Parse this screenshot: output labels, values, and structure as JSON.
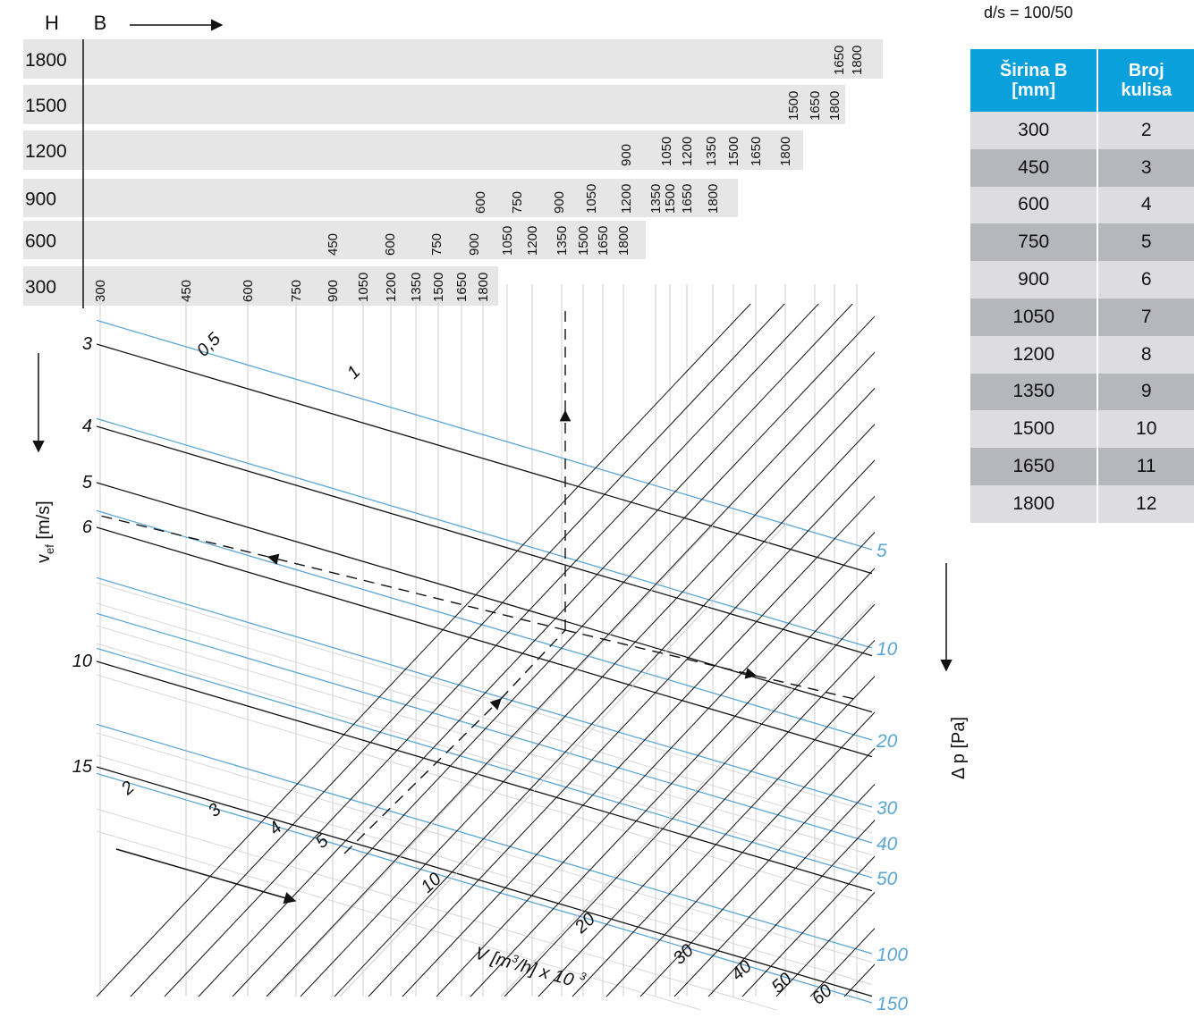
{
  "chart_data": {
    "type": "nomogram",
    "title": "",
    "top_axes": {
      "h_label": "H",
      "b_label": "B"
    },
    "height_rows": [
      {
        "h": "1800",
        "widths": [
          "1650",
          "1800"
        ]
      },
      {
        "h": "1500",
        "widths": [
          "1500",
          "1650",
          "1800"
        ]
      },
      {
        "h": "1200",
        "widths": [
          "900",
          "1050",
          "1200",
          "1350",
          "1500",
          "1650",
          "1800"
        ]
      },
      {
        "h": "900",
        "widths": [
          "600",
          "750",
          "900",
          "1050",
          "1200",
          "1350",
          "1500",
          "1650",
          "1800"
        ]
      },
      {
        "h": "600",
        "widths": [
          "450",
          "600",
          "750",
          "900",
          "1050",
          "1200",
          "1350",
          "1500",
          "1650",
          "1800"
        ]
      },
      {
        "h": "300",
        "widths": [
          "300",
          "450",
          "600",
          "750",
          "900",
          "1050",
          "1200",
          "1350",
          "1500",
          "1650",
          "1800"
        ]
      }
    ],
    "velocity_axis": {
      "label": "v",
      "subscript": "ef",
      "unit": " [m/s]",
      "ticks": [
        "3",
        "4",
        "5",
        "6",
        "10",
        "15"
      ]
    },
    "pressure_axis": {
      "label": "Δ p [Pa]",
      "ticks": [
        "5",
        "10",
        "20",
        "30",
        "40",
        "50",
        "100",
        "150"
      ]
    },
    "flow_axis": {
      "label_main": "V [m",
      "label_sup": "3",
      "label_mid": "/h] x 10",
      "label_sup2": "3",
      "ticks": [
        "0,5",
        "1",
        "2",
        "3",
        "4",
        "5",
        "10",
        "20",
        "30",
        "40",
        "50",
        "60"
      ]
    }
  },
  "table": {
    "ratio_label": "d/s = 100/50",
    "headers": [
      "Širina B\n[mm]",
      "Broj\nkulisa"
    ],
    "header_lines": [
      [
        "Širina B",
        "[mm]"
      ],
      [
        "Broj",
        "kulisa"
      ]
    ],
    "rows": [
      [
        "300",
        "2"
      ],
      [
        "450",
        "3"
      ],
      [
        "600",
        "4"
      ],
      [
        "750",
        "5"
      ],
      [
        "900",
        "6"
      ],
      [
        "1050",
        "7"
      ],
      [
        "1200",
        "8"
      ],
      [
        "1350",
        "9"
      ],
      [
        "1500",
        "10"
      ],
      [
        "1650",
        "11"
      ],
      [
        "1800",
        "12"
      ]
    ]
  },
  "colors": {
    "blue": "#5aa6d6",
    "bar": "#e6e6e6",
    "table_header": "#0aa0dc",
    "row_light": "#dddde1",
    "row_dark": "#b6b6bd"
  }
}
